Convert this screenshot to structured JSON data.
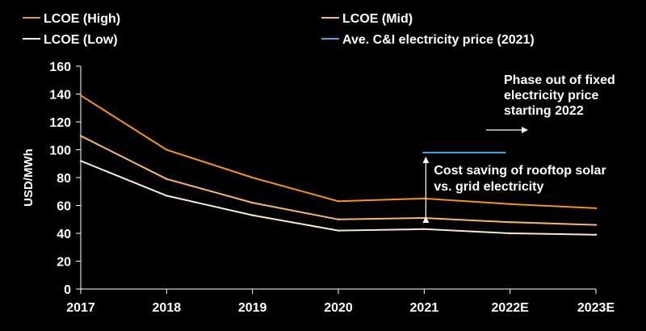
{
  "chart_data": {
    "type": "line",
    "title": "",
    "xlabel": "",
    "ylabel": "USD/MWh",
    "ylim": [
      0,
      160
    ],
    "yticks": [
      0,
      20,
      40,
      60,
      80,
      100,
      120,
      140,
      160
    ],
    "categories": [
      "2017",
      "2018",
      "2019",
      "2020",
      "2021",
      "2022E",
      "2023E"
    ],
    "series": [
      {
        "name": "LCOE (High)",
        "color": "#f0961e",
        "values": [
          139,
          100,
          80,
          63,
          65,
          61,
          58
        ]
      },
      {
        "name": "LCOE (Mid)",
        "color": "#f7b86a",
        "values": [
          110,
          79,
          62,
          50,
          51,
          48,
          46
        ]
      },
      {
        "name": "LCOE (Low)",
        "color": "#f6ead0",
        "values": [
          92,
          67,
          53,
          42,
          43,
          40,
          39
        ]
      }
    ],
    "reference_line": {
      "name": "Ave. C&I electricity price (2021)",
      "color": "#4aa3e0",
      "value": 98,
      "x_start": 3.98,
      "x_end": 4.95
    },
    "annotations": {
      "cost_saving": {
        "lines": [
          "Cost saving of rooftop solar",
          "vs. grid electricity"
        ],
        "x": 4.0,
        "y_from": 51,
        "y_to": 95
      },
      "phase_out": {
        "lines": [
          "Phase out of fixed",
          "electricity price",
          "starting 2022"
        ],
        "arrow_x_start": 4.72,
        "arrow_x_end": 5.2,
        "arrow_y": 114
      }
    },
    "legend_position": "top",
    "grid": false
  }
}
